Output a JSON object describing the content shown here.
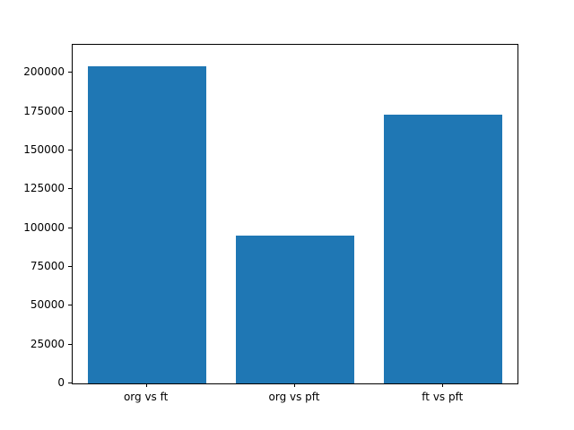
{
  "figure": {
    "background": "#ffffff",
    "axes_edge_color": "#000000",
    "tick_color": "#000000"
  },
  "chart_data": {
    "type": "bar",
    "title": "",
    "xlabel": "",
    "ylabel": "",
    "categories": [
      "org vs ft",
      "org vs pft",
      "ft vs pft"
    ],
    "values": [
      204000,
      95000,
      173000
    ],
    "bar_color": "#1f77b4",
    "bar_width_fraction": 0.8,
    "ylim": [
      0,
      218000
    ],
    "yticks": [
      0,
      25000,
      50000,
      75000,
      100000,
      125000,
      150000,
      175000,
      200000
    ],
    "grid": false,
    "legend": false
  }
}
